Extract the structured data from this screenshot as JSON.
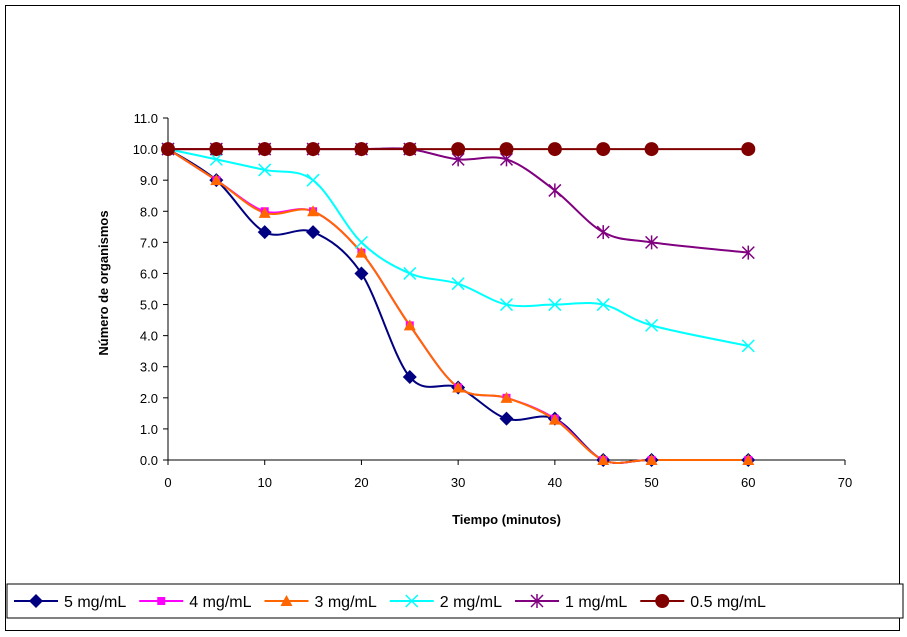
{
  "chart_data": {
    "type": "line",
    "title": "",
    "xlabel": "Tiempo (minutos)",
    "ylabel": "Número de organismos",
    "xlim": [
      0,
      70
    ],
    "ylim": [
      0,
      11
    ],
    "x_ticks": [
      "0",
      "10",
      "20",
      "30",
      "40",
      "50",
      "60",
      "70"
    ],
    "y_ticks": [
      "0.0",
      "1.0",
      "2.0",
      "3.0",
      "4.0",
      "5.0",
      "6.0",
      "7.0",
      "8.0",
      "9.0",
      "10.0",
      "11.0"
    ],
    "x": [
      0,
      5,
      10,
      15,
      20,
      25,
      30,
      35,
      40,
      45,
      50,
      60
    ],
    "grid": false,
    "legend_position": "bottom",
    "series": [
      {
        "name": "5 mg/mL",
        "color": "#000080",
        "marker": "diamond",
        "values": [
          10.0,
          9.0,
          7.33,
          7.33,
          6.0,
          2.67,
          2.33,
          1.33,
          1.33,
          0.0,
          0.0,
          0.0
        ]
      },
      {
        "name": "4 mg/mL",
        "color": "#FF00FF",
        "marker": "square",
        "values": [
          10.0,
          9.0,
          8.0,
          8.0,
          6.67,
          4.33,
          2.33,
          2.0,
          1.33,
          0.0,
          0.0,
          0.0
        ]
      },
      {
        "name": "3 mg/mL",
        "color": "#FF6600",
        "marker": "triangle",
        "values": [
          10.0,
          9.0,
          7.95,
          8.0,
          6.67,
          4.33,
          2.33,
          2.0,
          1.3,
          0.0,
          0.0,
          0.0
        ]
      },
      {
        "name": "2 mg/mL",
        "color": "#00FFFF",
        "marker": "x",
        "values": [
          10.0,
          9.67,
          9.33,
          9.0,
          7.0,
          6.0,
          5.67,
          5.0,
          5.0,
          5.0,
          4.33,
          3.67
        ]
      },
      {
        "name": "1 mg/mL",
        "color": "#800080",
        "marker": "star",
        "values": [
          10.0,
          10.0,
          10.0,
          10.0,
          10.0,
          10.0,
          9.67,
          9.67,
          8.67,
          7.33,
          7.0,
          6.67
        ]
      },
      {
        "name": "0.5 mg/mL",
        "color": "#800000",
        "marker": "circle",
        "values": [
          10.0,
          10.0,
          10.0,
          10.0,
          10.0,
          10.0,
          10.0,
          10.0,
          10.0,
          10.0,
          10.0,
          10.0
        ]
      }
    ]
  }
}
